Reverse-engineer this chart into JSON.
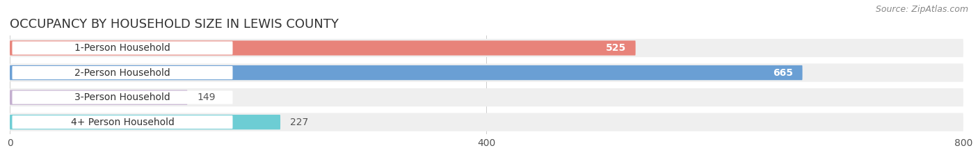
{
  "title": "OCCUPANCY BY HOUSEHOLD SIZE IN LEWIS COUNTY",
  "source": "Source: ZipAtlas.com",
  "categories": [
    "1-Person Household",
    "2-Person Household",
    "3-Person Household",
    "4+ Person Household"
  ],
  "values": [
    525,
    665,
    149,
    227
  ],
  "bar_colors": [
    "#E8837A",
    "#6A9FD4",
    "#C3AECF",
    "#6DCDD4"
  ],
  "bar_bg_color": "#EFEFEF",
  "label_pill_color": "#FFFFFF",
  "xlim": [
    0,
    800
  ],
  "xticks": [
    0,
    400,
    800
  ],
  "label_color_inside": "#FFFFFF",
  "label_color_outside": "#555555",
  "title_fontsize": 13,
  "source_fontsize": 9,
  "tick_fontsize": 10,
  "bar_label_fontsize": 10,
  "cat_label_fontsize": 10,
  "figsize": [
    14.06,
    2.33
  ],
  "dpi": 100
}
